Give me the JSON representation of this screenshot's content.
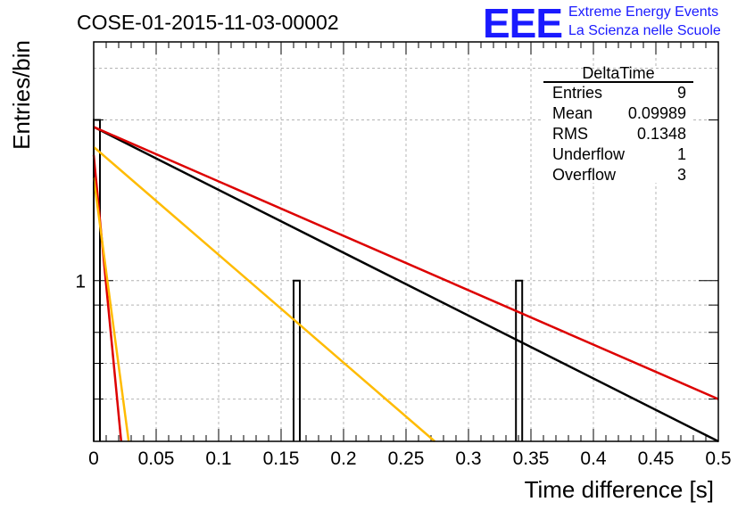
{
  "header": {
    "title": "COSE-01-2015-11-03-00002",
    "logo_text": "EEE",
    "brand_line1": "Extreme Energy Events",
    "brand_line2": "La Scienza nelle Scuole"
  },
  "stats_box": {
    "name": "DeltaTime",
    "rows": [
      {
        "label": "Entries",
        "value": "9"
      },
      {
        "label": "Mean",
        "value": "0.09989"
      },
      {
        "label": "RMS",
        "value": "0.1348"
      },
      {
        "label": "Underflow",
        "value": "1"
      },
      {
        "label": "Overflow",
        "value": "3"
      }
    ]
  },
  "chart_data": {
    "type": "bar",
    "xlabel": "Time difference [s]",
    "ylabel": "Entries/bin",
    "xlim": [
      0,
      0.5
    ],
    "ylim": [
      0.5,
      2.8
    ],
    "y_log_scale": true,
    "grid": true,
    "x_ticks": [
      "0",
      "0.05",
      "0.1",
      "0.15",
      "0.2",
      "0.25",
      "0.3",
      "0.35",
      "0.4",
      "0.45",
      "0.5"
    ],
    "y_ticks": [
      "1"
    ],
    "histogram_bins": [
      {
        "x0": 0.0,
        "x1": 0.005,
        "value": 2
      },
      {
        "x0": 0.16,
        "x1": 0.165,
        "value": 1
      },
      {
        "x0": 0.338,
        "x1": 0.343,
        "value": 1
      }
    ],
    "fit_lines": [
      {
        "color": "#000000",
        "x": [
          0.0,
          0.5
        ],
        "y": [
          1.94,
          0.5
        ]
      },
      {
        "color": "#dd0000",
        "x": [
          0.0,
          0.5
        ],
        "y": [
          1.94,
          0.6
        ]
      },
      {
        "color": "#dd0000",
        "x": [
          0.0,
          0.022
        ],
        "y": [
          1.72,
          0.5
        ]
      },
      {
        "color": "#ffbb00",
        "x": [
          0.0,
          0.273
        ],
        "y": [
          1.78,
          0.5
        ]
      },
      {
        "color": "#ffbb00",
        "x": [
          0.0,
          0.028
        ],
        "y": [
          1.56,
          0.5
        ]
      }
    ]
  }
}
